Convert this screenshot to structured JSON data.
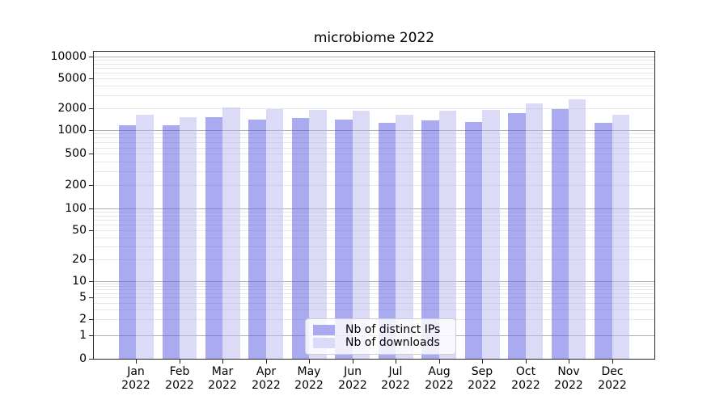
{
  "title": "microbiome 2022",
  "chart_data": {
    "type": "bar",
    "title": "microbiome 2022",
    "categories": [
      "Jan",
      "Feb",
      "Mar",
      "Apr",
      "May",
      "Jun",
      "Jul",
      "Aug",
      "Sep",
      "Oct",
      "Nov",
      "Dec"
    ],
    "year_label": "2022",
    "series": [
      {
        "name": "Nb of distinct IPs",
        "swatch_color": "#aaaaf0",
        "fill": "rgba(85,85,225,0.5)",
        "values": [
          1150,
          1150,
          1500,
          1400,
          1450,
          1400,
          1250,
          1350,
          1300,
          1700,
          1950,
          1250
        ]
      },
      {
        "name": "Nb of downloads",
        "swatch_color": "#dbdbf8",
        "fill": "rgba(183,183,241,0.5)",
        "values": [
          1600,
          1500,
          2050,
          1950,
          1900,
          1850,
          1600,
          1850,
          1900,
          2300,
          2600,
          1600
        ]
      }
    ],
    "yscale": "symlog",
    "yticks": [
      0,
      1,
      2,
      5,
      10,
      20,
      50,
      100,
      200,
      500,
      1000,
      2000,
      5000,
      10000
    ],
    "ylim": [
      0,
      12000
    ],
    "grid": "horizontal, major and minor",
    "legend_position": "lower center",
    "colors": {
      "grid_major": "#b0b0b0",
      "grid_minor": "#e7e7e7",
      "spine": "#262626",
      "text": "#000000",
      "background": "#ffffff"
    }
  }
}
